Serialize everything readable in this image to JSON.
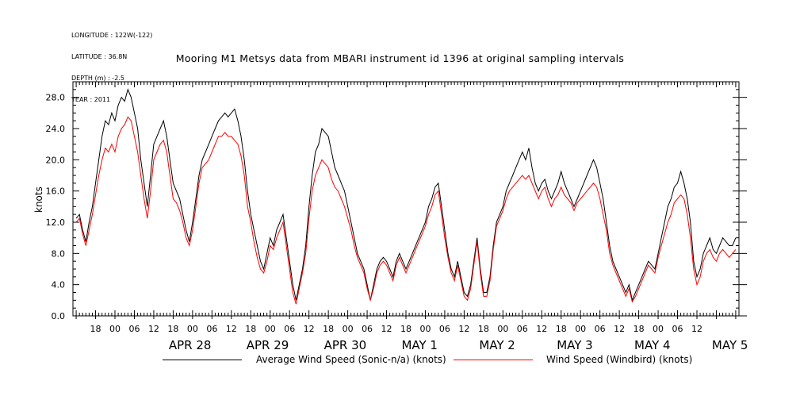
{
  "header": {
    "longitude": "LONGITUDE : 122W(-122)",
    "latitude": "LATITUDE : 36.8N",
    "depth": "DEPTH (m) : -2.5",
    "year": "YEAR : 2011"
  },
  "chart_data": {
    "type": "line",
    "title": "Mooring M1 Metsys data from MBARI instrument id 1396 at original sampling intervals",
    "ylabel": "knots",
    "xlabel": "",
    "ylim": [
      0,
      30
    ],
    "yticks": [
      "0.0",
      "4.0",
      "8.0",
      "12.0",
      "16.0",
      "20.0",
      "24.0",
      "28.0"
    ],
    "xlim_hours": [
      -37,
      169
    ],
    "hour_labels": [
      "18",
      "00",
      "06",
      "12",
      "18",
      "00",
      "06",
      "12",
      "18",
      "00",
      "06",
      "12",
      "18",
      "00",
      "06",
      "12",
      "18",
      "00",
      "06",
      "12",
      "18",
      "00",
      "06",
      "12",
      "18",
      "00",
      "06",
      "12",
      "18",
      "00",
      "06",
      "12"
    ],
    "date_labels": [
      "APR 28",
      "APR 29",
      "APR 30",
      "MAY  1",
      "MAY  2",
      "MAY  3",
      "MAY  4",
      "MAY  5"
    ],
    "grid": false,
    "legend_position": "bottom",
    "series": [
      {
        "name": "Average Wind Speed (Sonic-n/a) (knots)",
        "color": "#000000",
        "x": [
          -36,
          -35,
          -34,
          -33,
          -32,
          -31,
          -30,
          -29,
          -28,
          -27,
          -26,
          -25,
          -24,
          -23,
          -22,
          -21,
          -20,
          -19,
          -18,
          -17,
          -16,
          -15,
          -14,
          -13,
          -12,
          -11,
          -10,
          -9,
          -8,
          -7,
          -6,
          -5,
          -4,
          -3,
          -2,
          -1,
          0,
          1,
          2,
          3,
          4,
          5,
          6,
          7,
          8,
          9,
          10,
          11,
          12,
          13,
          14,
          15,
          16,
          17,
          18,
          19,
          20,
          21,
          22,
          23,
          24,
          25,
          26,
          27,
          28,
          29,
          30,
          31,
          32,
          33,
          34,
          35,
          36,
          37,
          38,
          39,
          40,
          41,
          42,
          43,
          44,
          45,
          46,
          47,
          48,
          49,
          50,
          51,
          52,
          53,
          54,
          55,
          56,
          57,
          58,
          59,
          60,
          61,
          62,
          63,
          64,
          65,
          66,
          67,
          68,
          69,
          70,
          71,
          72,
          73,
          74,
          75,
          76,
          77,
          78,
          79,
          80,
          81,
          82,
          83,
          84,
          85,
          86,
          87,
          88,
          89,
          90,
          91,
          92,
          93,
          94,
          95,
          96,
          97,
          98,
          99,
          100,
          101,
          102,
          103,
          104,
          105,
          106,
          107,
          108,
          109,
          110,
          111,
          112,
          113,
          114,
          115,
          116,
          117,
          118,
          119,
          120,
          121,
          122,
          123,
          124,
          125,
          126,
          127,
          128,
          129,
          130,
          131,
          132,
          133,
          134,
          135,
          136,
          137,
          138,
          139,
          140,
          141,
          142,
          143,
          144,
          145,
          146,
          147,
          148,
          149,
          150,
          151,
          152,
          153,
          154,
          155,
          156,
          157,
          158,
          159,
          160,
          161,
          162,
          163,
          164,
          165,
          166,
          167,
          168
        ],
        "y": [
          12.5,
          13,
          11,
          9.5,
          12,
          14,
          17,
          20,
          23,
          25,
          24.5,
          26,
          25,
          27,
          28,
          27.5,
          29,
          28,
          26,
          24,
          20,
          17,
          14,
          18,
          22,
          23,
          24,
          25,
          23,
          20,
          17,
          16,
          15,
          13,
          11,
          9.5,
          12,
          15,
          18,
          20,
          21,
          22,
          23,
          24,
          25,
          25.5,
          26,
          25.5,
          26,
          26.5,
          25,
          23,
          20,
          16,
          13,
          11,
          9,
          7,
          6,
          8,
          10,
          9,
          11,
          12,
          13,
          10,
          7,
          4,
          2,
          4,
          6,
          9,
          14,
          18,
          21,
          22,
          24,
          23.5,
          23,
          21,
          19,
          18,
          17,
          16,
          14,
          12,
          10,
          8,
          7,
          6,
          4,
          2,
          4,
          6,
          7,
          7.5,
          7,
          6,
          5,
          7,
          8,
          7,
          6,
          7,
          8,
          9,
          10,
          11,
          12,
          14,
          15,
          16.5,
          17,
          14,
          11,
          8,
          6,
          5,
          7,
          5,
          3,
          2.5,
          4,
          7,
          10,
          6,
          3,
          3,
          5,
          9,
          12,
          13,
          14,
          16,
          17,
          18,
          19,
          20,
          21,
          20,
          21.5,
          19,
          17,
          16,
          17,
          17.5,
          16,
          15,
          16,
          17,
          18.5,
          17,
          16,
          15,
          14,
          15,
          16,
          17,
          18,
          19,
          20,
          19,
          17,
          15,
          12,
          9,
          7,
          6,
          5,
          4,
          3,
          4,
          2,
          3,
          4,
          5,
          6,
          7,
          6.5,
          6,
          8,
          10,
          12,
          14,
          15,
          16.5,
          17,
          18.5,
          17,
          15,
          12,
          7,
          5,
          6,
          8,
          9,
          10,
          8.5,
          8,
          9,
          10,
          9.5,
          9,
          9,
          10
        ]
      },
      {
        "name": "Wind Speed (Windbird) (knots)",
        "color": "#ff0000",
        "x": [
          -36,
          -35,
          -34,
          -33,
          -32,
          -31,
          -30,
          -29,
          -28,
          -27,
          -26,
          -25,
          -24,
          -23,
          -22,
          -21,
          -20,
          -19,
          -18,
          -17,
          -16,
          -15,
          -14,
          -13,
          -12,
          -11,
          -10,
          -9,
          -8,
          -7,
          -6,
          -5,
          -4,
          -3,
          -2,
          -1,
          0,
          1,
          2,
          3,
          4,
          5,
          6,
          7,
          8,
          9,
          10,
          11,
          12,
          13,
          14,
          15,
          16,
          17,
          18,
          19,
          20,
          21,
          22,
          23,
          24,
          25,
          26,
          27,
          28,
          29,
          30,
          31,
          32,
          33,
          34,
          35,
          36,
          37,
          38,
          39,
          40,
          41,
          42,
          43,
          44,
          45,
          46,
          47,
          48,
          49,
          50,
          51,
          52,
          53,
          54,
          55,
          56,
          57,
          58,
          59,
          60,
          61,
          62,
          63,
          64,
          65,
          66,
          67,
          68,
          69,
          70,
          71,
          72,
          73,
          74,
          75,
          76,
          77,
          78,
          79,
          80,
          81,
          82,
          83,
          84,
          85,
          86,
          87,
          88,
          89,
          90,
          91,
          92,
          93,
          94,
          95,
          96,
          97,
          98,
          99,
          100,
          101,
          102,
          103,
          104,
          105,
          106,
          107,
          108,
          109,
          110,
          111,
          112,
          113,
          114,
          115,
          116,
          117,
          118,
          119,
          120,
          121,
          122,
          123,
          124,
          125,
          126,
          127,
          128,
          129,
          130,
          131,
          132,
          133,
          134,
          135,
          136,
          137,
          138,
          139,
          140,
          141,
          142,
          143,
          144,
          145,
          146,
          147,
          148,
          149,
          150,
          151,
          152,
          153,
          154,
          155,
          156,
          157,
          158,
          159,
          160,
          161,
          162,
          163,
          164,
          165,
          166,
          167,
          168
        ],
        "y": [
          12,
          12.5,
          10.5,
          9,
          11,
          13,
          15.5,
          18,
          20,
          21.5,
          21,
          22,
          21,
          23,
          24,
          24.5,
          25.5,
          25,
          23,
          21,
          18,
          15,
          12.5,
          16,
          20,
          21,
          22,
          22.5,
          21,
          18,
          15,
          14.5,
          13.5,
          12,
          10,
          9,
          11,
          14,
          17,
          19,
          19.5,
          20,
          21,
          22,
          23,
          23,
          23.5,
          23,
          23,
          22.5,
          22,
          20.5,
          18,
          14,
          12,
          9.5,
          7.5,
          6,
          5.5,
          7,
          9,
          8.5,
          10,
          11,
          12,
          9,
          6,
          3,
          1.5,
          3.5,
          5.5,
          8,
          12.5,
          16,
          18,
          19,
          20,
          19.5,
          19,
          17.5,
          16.5,
          16,
          15,
          14,
          12.5,
          11,
          9,
          7.5,
          6.5,
          5.5,
          3.5,
          2,
          3.5,
          5.5,
          6.5,
          7,
          6.5,
          5.5,
          4.5,
          6.5,
          7.5,
          6.5,
          5.5,
          6.5,
          7.5,
          8.5,
          9.5,
          10.5,
          11.5,
          13,
          14,
          15.5,
          16,
          13,
          10,
          7.5,
          5.5,
          4.5,
          6.5,
          4.5,
          2.5,
          2,
          3.5,
          6.5,
          9.5,
          5.5,
          2.5,
          2.5,
          4.5,
          8.5,
          11.5,
          12.5,
          13.5,
          15,
          16,
          16.5,
          17,
          17.5,
          18,
          17.5,
          18,
          17,
          16,
          15,
          16,
          16.5,
          15,
          14,
          15,
          15.5,
          16.5,
          15.5,
          15,
          14.5,
          13.5,
          14.5,
          15,
          15.5,
          16,
          16.5,
          17,
          16.5,
          15,
          13,
          11,
          8,
          6.5,
          5.5,
          4.5,
          3.5,
          2.5,
          3.5,
          1.8,
          2.5,
          3.5,
          4.5,
          5.5,
          6.5,
          6,
          5.5,
          7.5,
          9,
          10.5,
          12,
          13,
          14.5,
          15,
          15.5,
          15,
          13,
          10,
          6,
          4,
          5,
          7,
          8,
          8.5,
          7.5,
          7,
          8,
          8.5,
          8,
          7.5,
          8,
          8.5
        ]
      }
    ]
  }
}
